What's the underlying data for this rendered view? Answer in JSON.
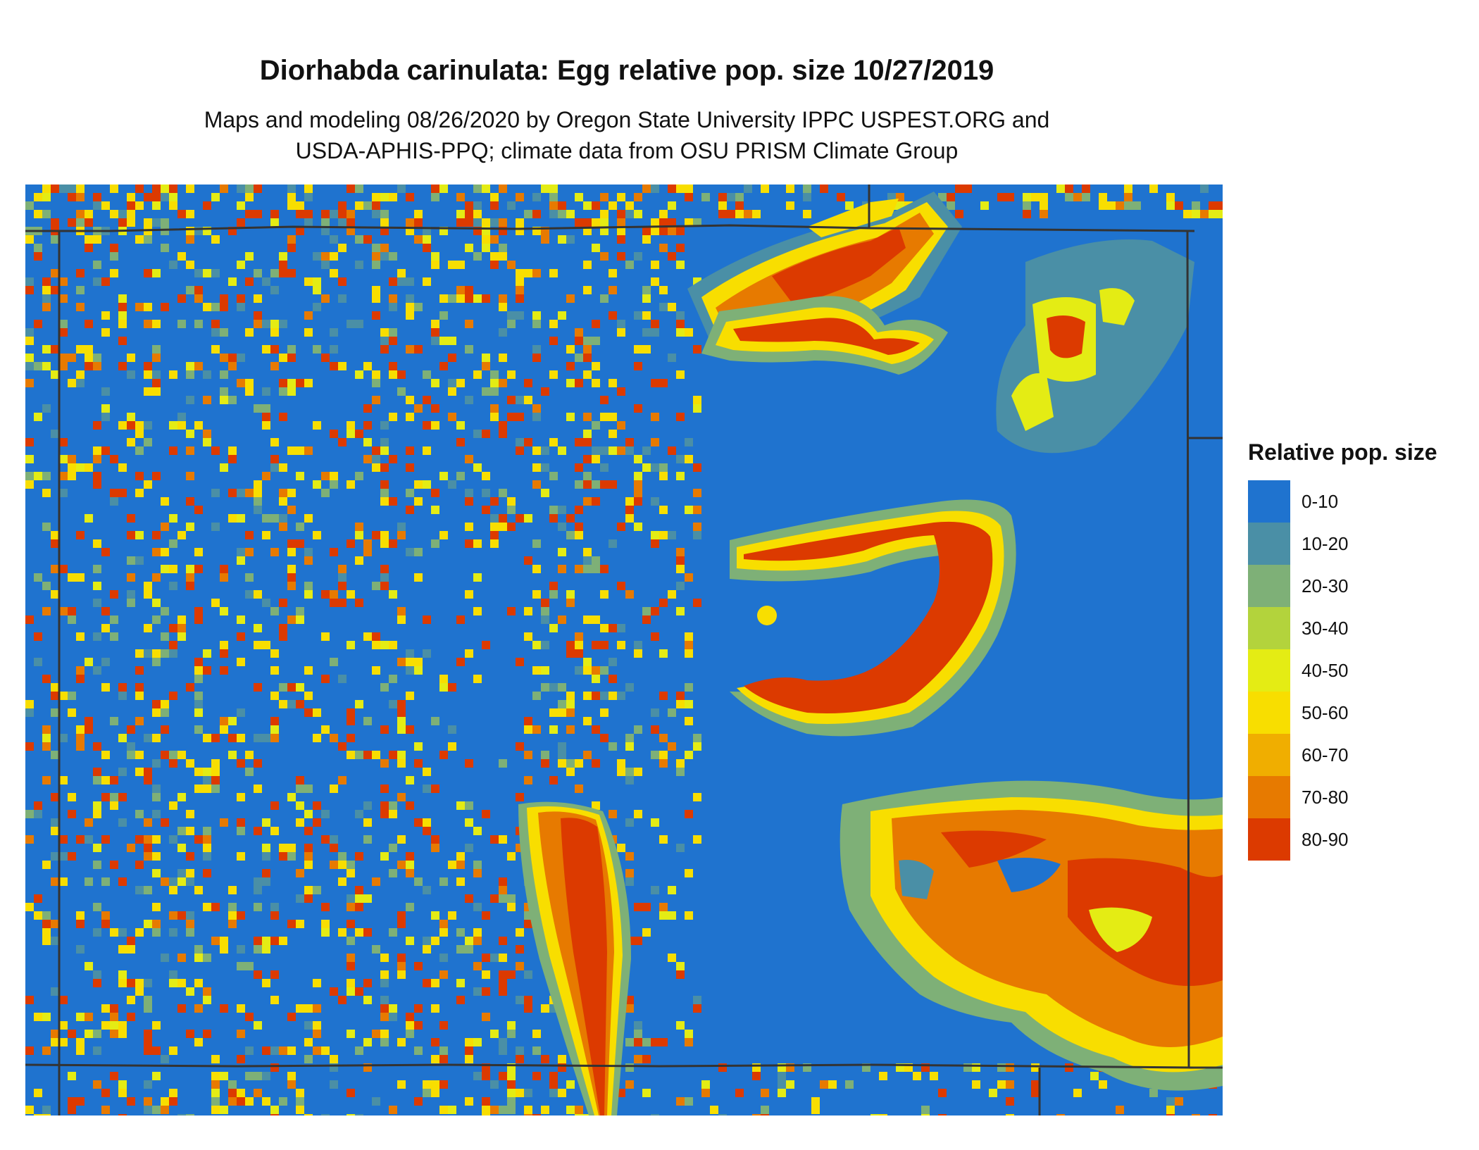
{
  "header": {
    "title": "Diorhabda carinulata: Egg relative pop. size 10/27/2019",
    "subtitle_line1": "Maps and modeling 08/26/2020 by Oregon State University IPPC USPEST.ORG and",
    "subtitle_line2": "USDA-APHIS-PPQ; climate data from OSU PRISM Climate Group"
  },
  "legend": {
    "title": "Relative pop. size",
    "items": [
      {
        "label": "0-10",
        "color": "#1f73cf"
      },
      {
        "label": "10-20",
        "color": "#4a8fa6"
      },
      {
        "label": "20-30",
        "color": "#7eb077"
      },
      {
        "label": "30-40",
        "color": "#b3d33c"
      },
      {
        "label": "40-50",
        "color": "#e4ec14"
      },
      {
        "label": "50-60",
        "color": "#f8de00"
      },
      {
        "label": "60-70",
        "color": "#f0ae00"
      },
      {
        "label": "70-80",
        "color": "#e77a00"
      },
      {
        "label": "80-90",
        "color": "#dc3a00"
      }
    ]
  },
  "map": {
    "background_class": "0-10",
    "boundary_color": "#333333"
  }
}
